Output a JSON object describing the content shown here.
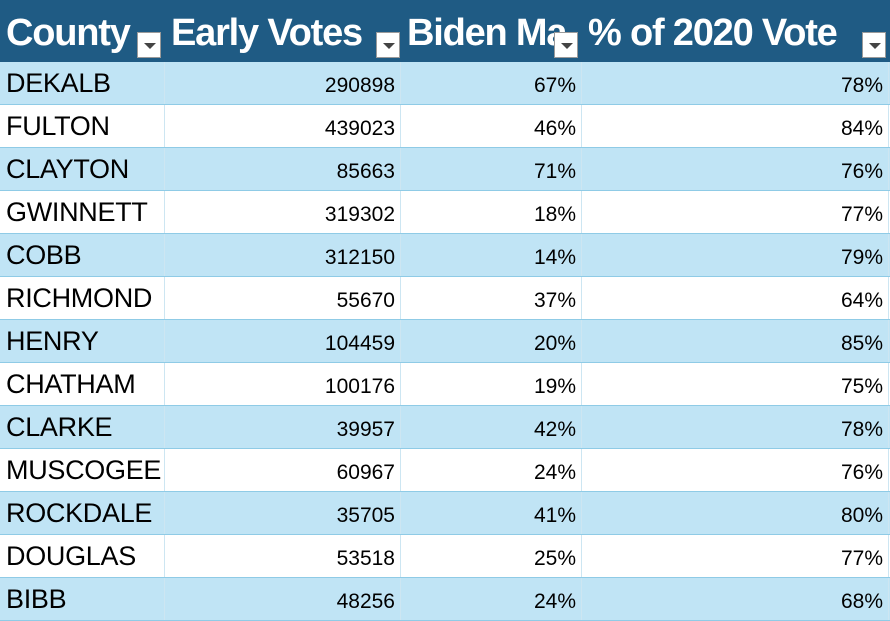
{
  "table": {
    "headers": [
      "County",
      "Early Votes",
      "Biden Ma",
      "% of 2020 Vote"
    ],
    "rows": [
      [
        "DEKALB",
        290898,
        "67%",
        "78%"
      ],
      [
        "FULTON",
        439023,
        "46%",
        "84%"
      ],
      [
        "CLAYTON",
        85663,
        "71%",
        "76%"
      ],
      [
        "GWINNETT",
        319302,
        "18%",
        "77%"
      ],
      [
        "COBB",
        312150,
        "14%",
        "79%"
      ],
      [
        "RICHMOND",
        55670,
        "37%",
        "64%"
      ],
      [
        "HENRY",
        104459,
        "20%",
        "85%"
      ],
      [
        "CHATHAM",
        100176,
        "19%",
        "75%"
      ],
      [
        "CLARKE",
        39957,
        "42%",
        "78%"
      ],
      [
        "MUSCOGEE",
        60967,
        "24%",
        "76%"
      ],
      [
        "ROCKDALE",
        35705,
        "41%",
        "80%"
      ],
      [
        "DOUGLAS",
        53518,
        "25%",
        "77%"
      ],
      [
        "BIBB",
        48256,
        "24%",
        "68%"
      ]
    ]
  }
}
